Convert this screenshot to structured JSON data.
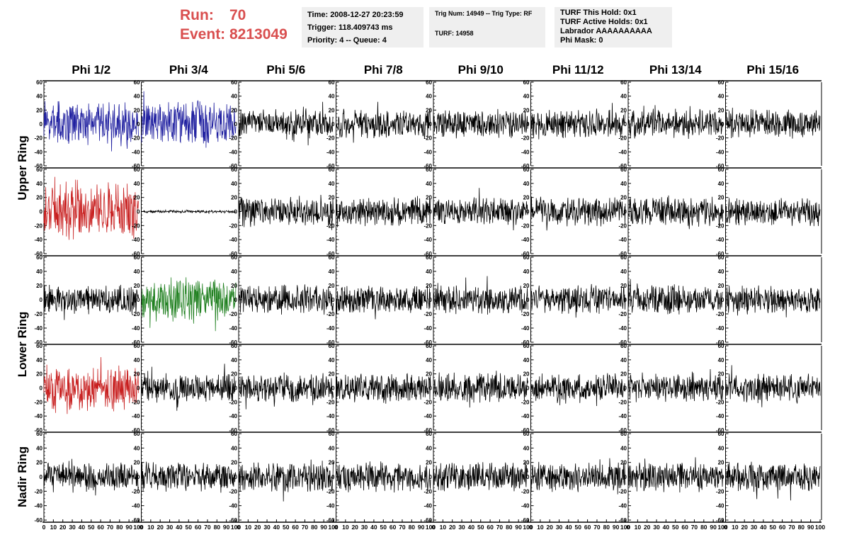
{
  "header": {
    "run_label": "Run:",
    "run_value": "70",
    "event_label": "Event:",
    "event_value": "8213049"
  },
  "info_panel_1": {
    "time": "Time: 2008-12-27 20:23:59",
    "trigger": "Trigger: 118.409743 ms",
    "priority": "Priority: 4 -- Queue: 4"
  },
  "info_panel_2": {
    "trig": "Trig Num: 14949 -- Trig Type: RF",
    "turf": "TURF: 14958"
  },
  "info_panel_3": {
    "this_hold": "TURF This Hold: 0x1",
    "active_holds": "TURF Active Holds: 0x1",
    "labrador": "Labrador AAAAAAAAAA",
    "phi_mask": "Phi Mask: 0"
  },
  "columns": [
    "Phi 1/2",
    "Phi 3/4",
    "Phi 5/6",
    "Phi 7/8",
    "Phi 9/10",
    "Phi 11/12",
    "Phi 13/14",
    "Phi 15/16"
  ],
  "rings": [
    {
      "label": "Upper Ring",
      "rows": [
        0,
        1
      ]
    },
    {
      "label": "Lower Ring",
      "rows": [
        2,
        3
      ]
    },
    {
      "label": "Nadir Ring",
      "rows": [
        4
      ]
    }
  ],
  "colors": {
    "header_red": "#d94f4f",
    "panel_bg": "#efefef",
    "trace_default": "#000000",
    "trace_blue": "#2020a0",
    "trace_red": "#c82020",
    "trace_green": "#208020"
  },
  "chart_data": {
    "type": "line",
    "grid_rows": 5,
    "grid_cols": 8,
    "xlim": [
      0,
      100
    ],
    "ylim": [
      -60,
      60
    ],
    "y_ticks": [
      "60",
      "40",
      "20",
      "0",
      "-20",
      "-40",
      "-60"
    ],
    "x_tick_labels": [
      "0",
      "10",
      "20",
      "30",
      "40",
      "50",
      "60",
      "70",
      "80",
      "90",
      "100"
    ],
    "trace_extent": 100,
    "highlighted_traces": [
      {
        "row": 0,
        "col": 0,
        "color": "blue",
        "amplitude": 30
      },
      {
        "row": 0,
        "col": 1,
        "color": "blue",
        "amplitude": 32
      },
      {
        "row": 1,
        "col": 0,
        "color": "red",
        "amplitude": 38
      },
      {
        "row": 2,
        "col": 1,
        "color": "green",
        "amplitude": 30
      },
      {
        "row": 3,
        "col": 0,
        "color": "red",
        "amplitude": 30
      }
    ],
    "flat_traces": [
      {
        "row": 1,
        "col": 1,
        "amplitude": 2
      }
    ],
    "default_amplitude": 20
  }
}
